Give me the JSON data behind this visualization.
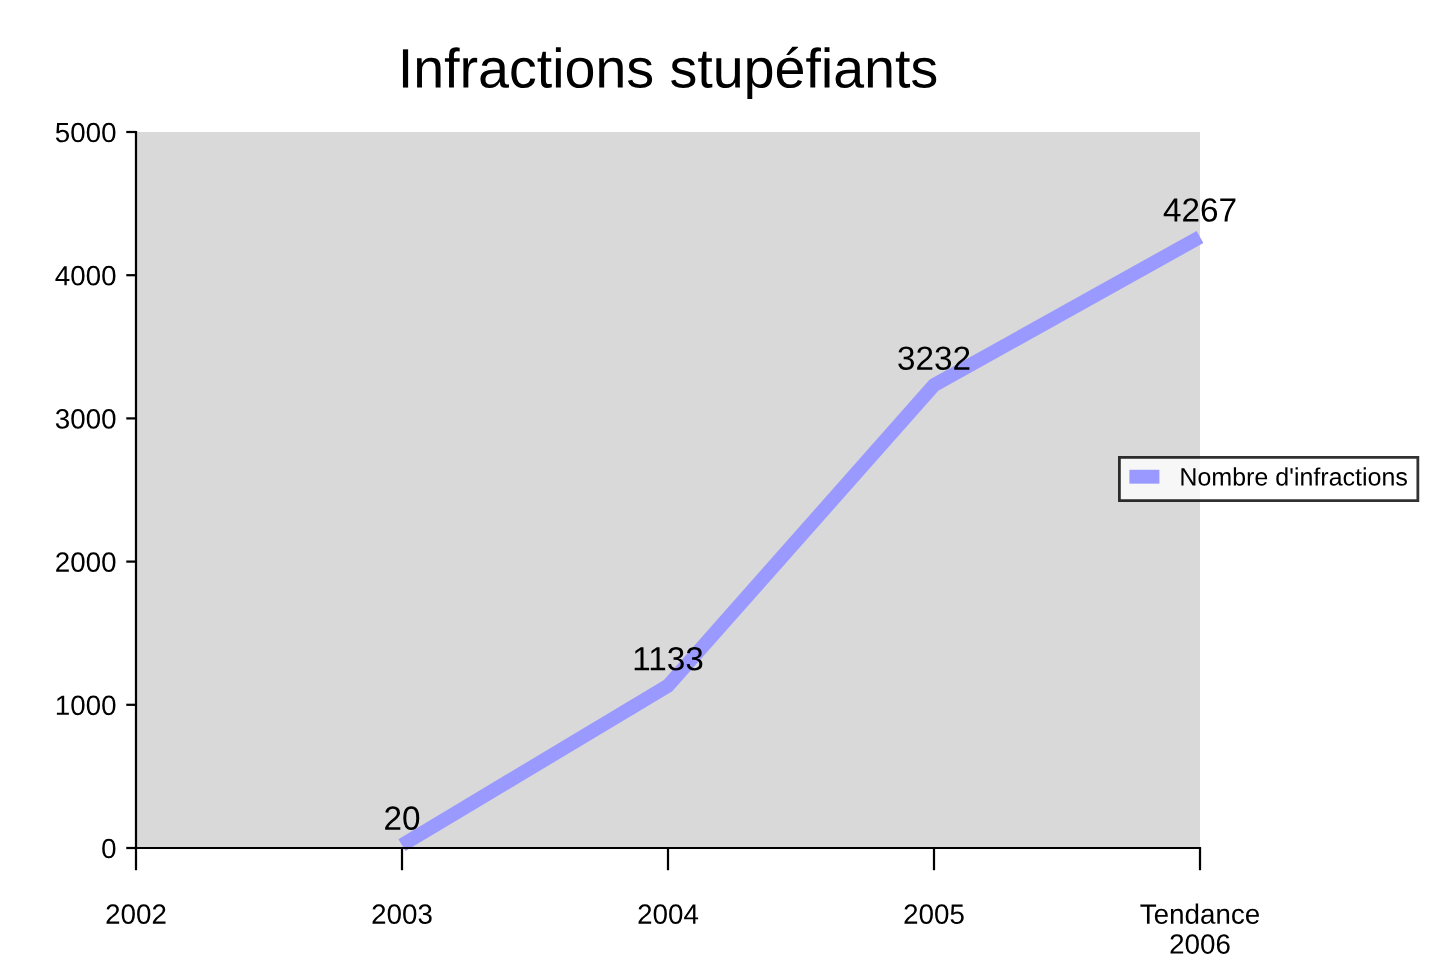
{
  "chart_data": {
    "type": "line",
    "title": "Infractions stupéfiants",
    "categories": [
      "2002",
      "2003",
      "2004",
      "2005",
      "Tendance\n2006"
    ],
    "series": [
      {
        "name": "Nombre d'infractions",
        "color": "#9999ff",
        "values": [
          null,
          20,
          1133,
          3232,
          4267
        ]
      }
    ],
    "ylim": [
      0,
      5000
    ],
    "yticks": [
      0,
      1000,
      2000,
      3000,
      4000,
      5000
    ],
    "grid": false,
    "legend": "right",
    "data_labels": true,
    "marker": "none",
    "line_style": "solid"
  }
}
